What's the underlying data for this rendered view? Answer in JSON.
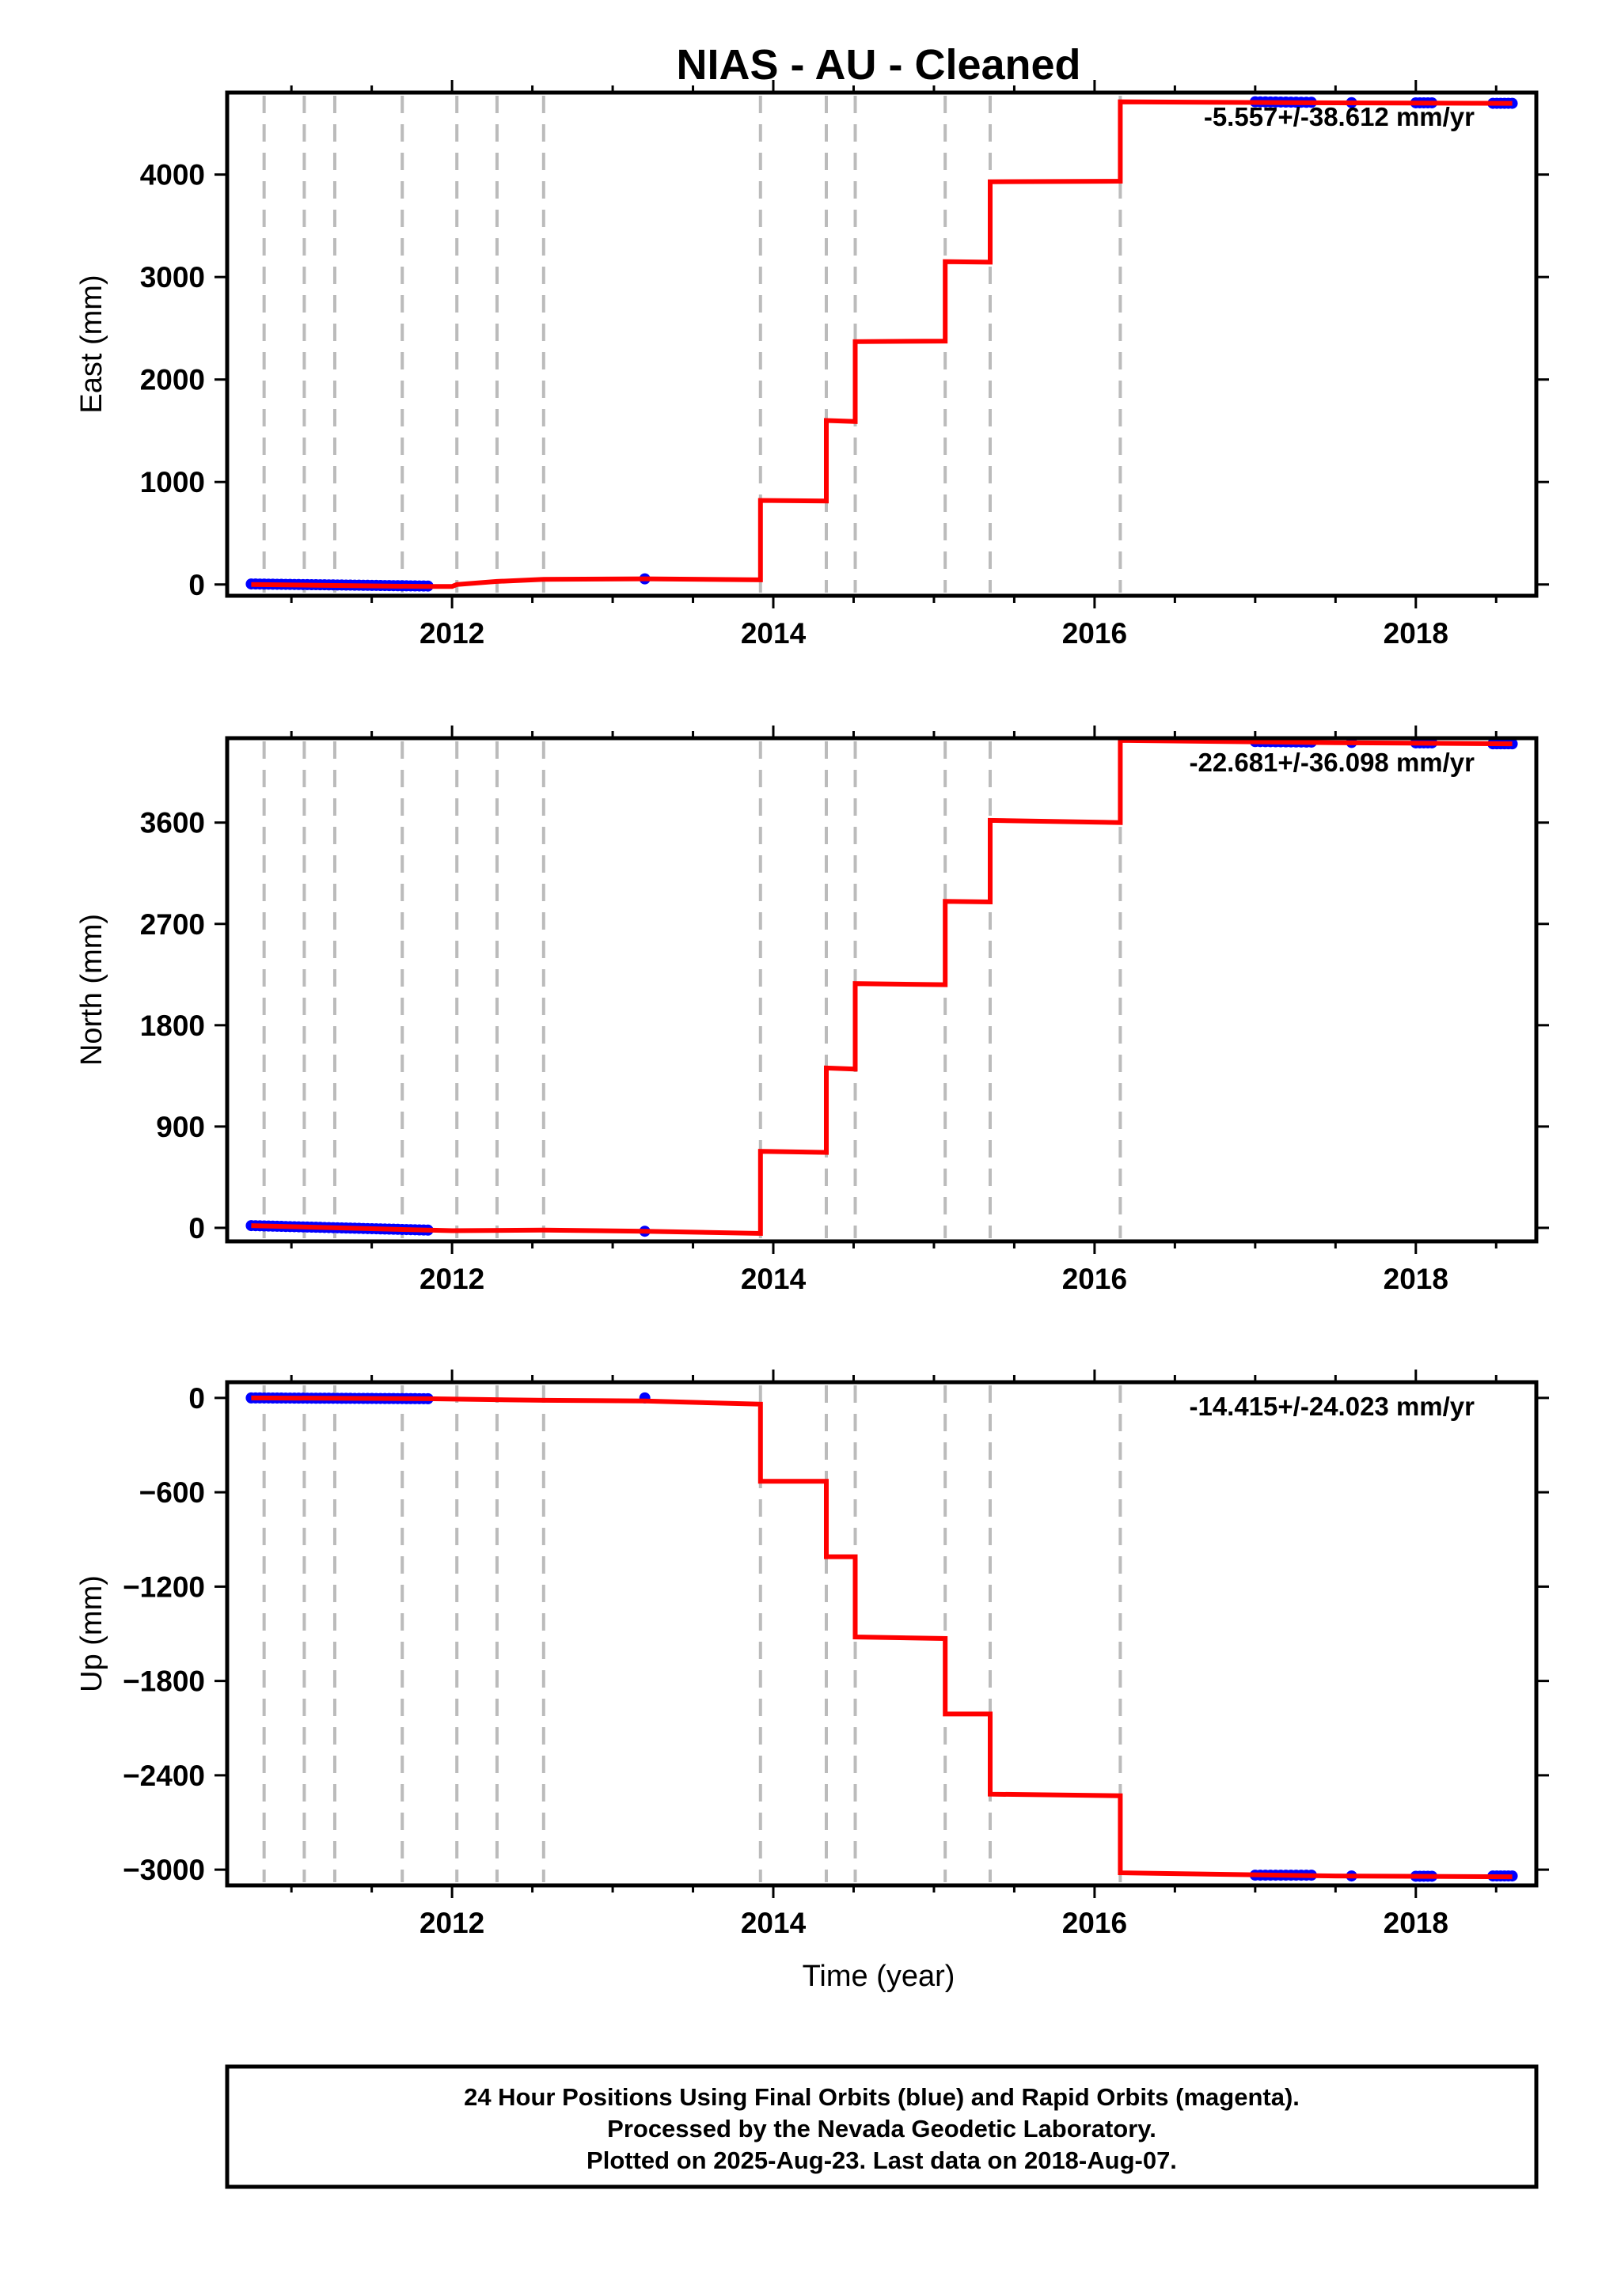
{
  "figure": {
    "title": "NIAS  - AU - Cleaned",
    "footer_lines": [
      "24 Hour Positions Using Final Orbits (blue) and Rapid Orbits (magenta).",
      "Processed by the Nevada Geodetic Laboratory.",
      "Plotted on 2025-Aug-23. Last data on 2018-Aug-07."
    ]
  },
  "colors": {
    "model": "#ff0000",
    "final_orbits": "#0000ff",
    "rapid_orbits": "#ff00ff",
    "event_lines": "#bbbbbb",
    "frame": "#000000"
  },
  "chart_data": [
    {
      "type": "line",
      "title": "NIAS  - AU - Cleaned",
      "xlabel": "",
      "ylabel": "East (mm)",
      "xlim": [
        2010.6,
        2018.75
      ],
      "ylim": [
        -110,
        4800
      ],
      "xticks": [
        2012,
        2014,
        2016,
        2018
      ],
      "xtick_labels": [
        "2012",
        "2014",
        "2016",
        "2018"
      ],
      "yticks": [
        0,
        1000,
        2000,
        3000,
        4000
      ],
      "ytick_labels": [
        "0",
        "1000",
        "2000",
        "3000",
        "4000"
      ],
      "rate_label": "-5.557+/-38.612 mm/yr",
      "event_lines": [
        2010.83,
        2011.08,
        2011.27,
        2011.69,
        2012.03,
        2012.28,
        2012.57,
        2013.92,
        2014.33,
        2014.51,
        2015.07,
        2015.35,
        2016.16
      ],
      "series": [
        {
          "kind": "model",
          "x": [
            2010.75,
            2011.85,
            2012.0,
            2012.03,
            2012.28,
            2012.57,
            2013.2,
            2013.92,
            2013.92,
            2014.33,
            2014.33,
            2014.51,
            2014.51,
            2015.07,
            2015.07,
            2015.35,
            2015.35,
            2016.16,
            2016.16,
            2017.5,
            2018.6
          ],
          "y": [
            0,
            -20,
            -20,
            0,
            30,
            50,
            55,
            45,
            820,
            815,
            1600,
            1590,
            2370,
            2375,
            3150,
            3145,
            3930,
            3935,
            4710,
            4700,
            4695
          ]
        },
        {
          "kind": "observations",
          "segments": [
            {
              "x_start": 2010.75,
              "x_end": 2011.85,
              "y_start": 5,
              "y_end": -15,
              "count": 42
            },
            {
              "x_start": 2013.2,
              "x_end": 2013.2,
              "y_start": 55,
              "y_end": 55,
              "count": 1
            },
            {
              "x_start": 2017.0,
              "x_end": 2017.35,
              "y_start": 4710,
              "y_end": 4705,
              "count": 12
            },
            {
              "x_start": 2017.6,
              "x_end": 2017.62,
              "y_start": 4702,
              "y_end": 4702,
              "count": 1
            },
            {
              "x_start": 2018.0,
              "x_end": 2018.1,
              "y_start": 4700,
              "y_end": 4700,
              "count": 5
            },
            {
              "x_start": 2018.48,
              "x_end": 2018.6,
              "y_start": 4695,
              "y_end": 4695,
              "count": 6
            }
          ]
        }
      ],
      "grid": false
    },
    {
      "type": "line",
      "xlabel": "",
      "ylabel": "North (mm)",
      "xlim": [
        2010.6,
        2018.75
      ],
      "ylim": [
        -120,
        4350
      ],
      "xticks": [
        2012,
        2014,
        2016,
        2018
      ],
      "xtick_labels": [
        "2012",
        "2014",
        "2016",
        "2018"
      ],
      "yticks": [
        0,
        900,
        1800,
        2700,
        3600
      ],
      "ytick_labels": [
        "0",
        "900",
        "1800",
        "2700",
        "3600"
      ],
      "rate_label": "-22.681+/-36.098 mm/yr",
      "event_lines": [
        2010.83,
        2011.08,
        2011.27,
        2011.69,
        2012.03,
        2012.28,
        2012.57,
        2013.92,
        2014.33,
        2014.51,
        2015.07,
        2015.35,
        2016.16
      ],
      "series": [
        {
          "kind": "model",
          "x": [
            2010.75,
            2011.85,
            2012.0,
            2012.57,
            2013.2,
            2013.92,
            2013.92,
            2014.33,
            2014.33,
            2014.51,
            2014.51,
            2015.07,
            2015.07,
            2015.35,
            2015.35,
            2016.16,
            2016.16,
            2017.5,
            2018.6
          ],
          "y": [
            20,
            -20,
            -25,
            -20,
            -30,
            -50,
            680,
            670,
            1420,
            1410,
            2170,
            2160,
            2900,
            2895,
            3620,
            3600,
            4330,
            4310,
            4300
          ]
        },
        {
          "kind": "observations",
          "segments": [
            {
              "x_start": 2010.75,
              "x_end": 2011.85,
              "y_start": 20,
              "y_end": -20,
              "count": 42
            },
            {
              "x_start": 2013.2,
              "x_end": 2013.2,
              "y_start": -30,
              "y_end": -30,
              "count": 1
            },
            {
              "x_start": 2017.0,
              "x_end": 2017.35,
              "y_start": 4320,
              "y_end": 4315,
              "count": 12
            },
            {
              "x_start": 2017.6,
              "x_end": 2017.62,
              "y_start": 4312,
              "y_end": 4312,
              "count": 1
            },
            {
              "x_start": 2018.0,
              "x_end": 2018.1,
              "y_start": 4308,
              "y_end": 4308,
              "count": 5
            },
            {
              "x_start": 2018.48,
              "x_end": 2018.6,
              "y_start": 4300,
              "y_end": 4300,
              "count": 6
            }
          ]
        }
      ],
      "grid": false
    },
    {
      "type": "line",
      "xlabel": "Time (year)",
      "ylabel": "Up (mm)",
      "xlim": [
        2010.6,
        2018.75
      ],
      "ylim": [
        -3100,
        100
      ],
      "xticks": [
        2012,
        2014,
        2016,
        2018
      ],
      "xtick_labels": [
        "2012",
        "2014",
        "2016",
        "2018"
      ],
      "yticks": [
        0,
        -600,
        -1200,
        -1800,
        -2400,
        -3000
      ],
      "ytick_labels": [
        "0",
        "−600",
        "−1200",
        "−1800",
        "−2400",
        "−3000"
      ],
      "rate_label": "-14.415+/-24.023 mm/yr",
      "event_lines": [
        2010.83,
        2011.08,
        2011.27,
        2011.69,
        2012.03,
        2012.28,
        2012.57,
        2013.92,
        2014.33,
        2014.51,
        2015.07,
        2015.35,
        2016.16
      ],
      "series": [
        {
          "kind": "model",
          "x": [
            2010.75,
            2011.85,
            2012.57,
            2013.2,
            2013.92,
            2013.92,
            2014.33,
            2014.33,
            2014.51,
            2014.51,
            2015.07,
            2015.07,
            2015.35,
            2015.35,
            2016.16,
            2016.16,
            2017.5,
            2018.6
          ],
          "y": [
            0,
            -5,
            -15,
            -20,
            -40,
            -530,
            -530,
            -1010,
            -1010,
            -1520,
            -1530,
            -2010,
            -2010,
            -2520,
            -2530,
            -3020,
            -3040,
            -3045
          ]
        },
        {
          "kind": "observations",
          "segments": [
            {
              "x_start": 2010.75,
              "x_end": 2011.85,
              "y_start": 0,
              "y_end": -5,
              "count": 42
            },
            {
              "x_start": 2013.2,
              "x_end": 2013.2,
              "y_start": 0,
              "y_end": 0,
              "count": 1
            },
            {
              "x_start": 2017.0,
              "x_end": 2017.35,
              "y_start": -3035,
              "y_end": -3035,
              "count": 12
            },
            {
              "x_start": 2017.6,
              "x_end": 2017.62,
              "y_start": -3040,
              "y_end": -3040,
              "count": 1
            },
            {
              "x_start": 2018.0,
              "x_end": 2018.1,
              "y_start": -3042,
              "y_end": -3042,
              "count": 5
            },
            {
              "x_start": 2018.48,
              "x_end": 2018.6,
              "y_start": -3040,
              "y_end": -3040,
              "count": 6
            }
          ]
        }
      ],
      "grid": false
    }
  ]
}
